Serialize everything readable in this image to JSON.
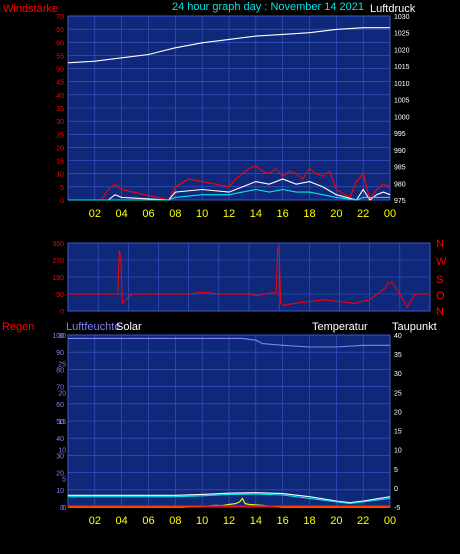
{
  "header": {
    "left_label": "Windstärke",
    "title": "24 hour graph day : November 14 2021",
    "right_label": "Luftdruck"
  },
  "panel2": {
    "compass": [
      "N",
      "W",
      "S",
      "O",
      "N"
    ]
  },
  "panel3": {
    "labels": {
      "regen": "Regen",
      "luftfeuchte": "Luftfeuchte",
      "solar": "Solar",
      "temperatur": "Temperatur",
      "taupunkt": "Taupunkt"
    }
  },
  "x_ticks": [
    "02",
    "04",
    "06",
    "08",
    "10",
    "12",
    "14",
    "16",
    "18",
    "20",
    "22",
    "00"
  ],
  "colors": {
    "plot_bg": "#10287a",
    "grid": "#3c5ad0",
    "wind": "#ff0000",
    "gust": "#ffffff",
    "wind_avg": "#00e5e5",
    "pressure": "#ffffff",
    "direction": "#ff0000",
    "humidity": "#8080ff",
    "temperature": "#ffffff",
    "dewpoint": "#00e5e5",
    "solar": "#ffff00",
    "x_tick": "#ffff00",
    "right_axis": "#ffffff"
  },
  "chart_data": [
    {
      "type": "line",
      "title": "24 hour graph day : November 14 2021",
      "ylabel": "Windstärke",
      "y2label": "Luftdruck",
      "ylim": [
        0,
        70
      ],
      "yticks": [
        0,
        5,
        10,
        15,
        20,
        25,
        30,
        35,
        40,
        45,
        50,
        55,
        60,
        65,
        70
      ],
      "y2lim": [
        975,
        1030
      ],
      "y2ticks": [
        975,
        980,
        985,
        990,
        995,
        1000,
        1005,
        1010,
        1015,
        1020,
        1025,
        1030
      ],
      "grid": true,
      "series": [
        {
          "axis": "y2",
          "color": "#ffffff",
          "x": [
            0,
            2,
            4,
            6,
            7,
            8,
            10,
            12,
            14,
            16,
            18,
            20,
            22,
            24
          ],
          "values": [
            1016,
            1016.5,
            1017.5,
            1018.5,
            1019.5,
            1020.5,
            1022,
            1023,
            1024,
            1024.5,
            1025,
            1026,
            1026.5,
            1026.5
          ]
        },
        {
          "axis": "y",
          "color": "#ff0000",
          "x": [
            0,
            2.5,
            3,
            3.5,
            4,
            7.5,
            8,
            9,
            10,
            11,
            12,
            12.5,
            13,
            13.5,
            14,
            14.5,
            15,
            15.5,
            16,
            16.5,
            17,
            17.5,
            18,
            18.5,
            19,
            19.5,
            20,
            21,
            21.5,
            22,
            22.5,
            23,
            23.5,
            24
          ],
          "values": [
            0,
            0,
            4,
            6,
            4,
            0,
            5,
            8,
            7,
            6,
            5,
            8,
            10,
            12,
            13,
            11,
            10,
            12,
            9,
            11,
            10,
            8,
            12,
            10,
            9,
            11,
            4,
            1,
            7,
            10,
            0,
            4,
            6,
            5
          ]
        },
        {
          "axis": "y",
          "color": "#ffffff",
          "x": [
            0,
            3,
            3.5,
            4,
            7.5,
            8,
            10,
            12,
            13,
            14,
            15,
            16,
            17,
            18,
            19,
            20,
            21.5,
            22,
            22.5,
            23,
            23.5,
            24
          ],
          "values": [
            0,
            0,
            2,
            1,
            0,
            3,
            4,
            3,
            5,
            7,
            6,
            8,
            6,
            7,
            5,
            2,
            0,
            4,
            0,
            2,
            3,
            2
          ]
        },
        {
          "axis": "y",
          "color": "#00e5e5",
          "x": [
            0,
            7.5,
            8,
            10,
            12,
            13,
            14,
            15,
            16,
            17,
            18,
            19,
            20,
            21.5,
            22,
            23,
            24
          ],
          "values": [
            0,
            0,
            1,
            2,
            2,
            3,
            4,
            3,
            4,
            3,
            3,
            2,
            1,
            0,
            1,
            1,
            1
          ]
        }
      ]
    },
    {
      "type": "line",
      "ylim": [
        0,
        360
      ],
      "yticks": [
        0,
        90,
        180,
        270,
        360
      ],
      "grid": true,
      "series": [
        {
          "color": "#ff0000",
          "x": [
            0,
            3.3,
            3.4,
            3.5,
            3.6,
            4,
            4.2,
            8,
            9,
            10,
            11,
            12,
            12.5,
            13,
            13.8,
            13.9,
            14,
            14.1,
            14.3,
            15,
            16,
            17,
            18,
            19,
            20,
            21,
            21.2,
            21.5,
            22,
            22.5,
            23,
            24
          ],
          "values": [
            90,
            90,
            320,
            290,
            40,
            70,
            90,
            90,
            100,
            90,
            90,
            90,
            80,
            90,
            100,
            340,
            320,
            40,
            30,
            40,
            50,
            60,
            50,
            40,
            60,
            120,
            150,
            150,
            90,
            20,
            90,
            90
          ]
        }
      ]
    },
    {
      "type": "line",
      "ylabel": "Regen",
      "ylim": [
        0,
        100
      ],
      "yticks": [
        0,
        10,
        20,
        30,
        40,
        50,
        60,
        70,
        80,
        90,
        100
      ],
      "humidity_ticks": [
        0,
        5,
        10,
        15,
        20,
        25,
        30
      ],
      "y2lim": [
        -5,
        40
      ],
      "y2ticks": [
        -5,
        0,
        5,
        10,
        15,
        20,
        25,
        30,
        35,
        40
      ],
      "grid": true,
      "series": [
        {
          "name": "Luftfeuchte",
          "color": "#8080ff",
          "x": [
            0,
            6,
            10,
            13,
            14,
            14.5,
            16,
            18,
            20,
            22,
            24
          ],
          "values": [
            98,
            98,
            98,
            98,
            97,
            95,
            94,
            93,
            93,
            94,
            94
          ]
        },
        {
          "name": "Temperatur",
          "color": "#ffffff",
          "x": [
            0,
            4,
            8,
            10,
            12,
            14,
            16,
            18,
            20,
            21,
            22,
            24
          ],
          "values": [
            6.8,
            6.8,
            6.8,
            7.3,
            8,
            8.3,
            7.8,
            6,
            3.5,
            2.5,
            3.5,
            6
          ]
        },
        {
          "name": "Taupunkt",
          "color": "#00e5e5",
          "x": [
            0,
            4,
            8,
            10,
            12,
            14,
            16,
            18,
            20,
            21,
            22,
            24
          ],
          "values": [
            6,
            6,
            6,
            6.5,
            7.3,
            7.5,
            7,
            5,
            3,
            2,
            3,
            5
          ]
        },
        {
          "name": "Solar",
          "color": "#ffff00",
          "x": [
            0,
            8.5,
            9,
            10,
            11,
            11.5,
            12,
            12.5,
            12.8,
            13,
            13.2,
            13.5,
            14,
            14.5,
            15,
            15.5,
            16,
            24
          ],
          "values": [
            0,
            0,
            0.3,
            0.4,
            1,
            0.8,
            1.5,
            2,
            3,
            5,
            2,
            1.5,
            1.2,
            1,
            0.6,
            0.3,
            0,
            0
          ]
        }
      ]
    }
  ]
}
